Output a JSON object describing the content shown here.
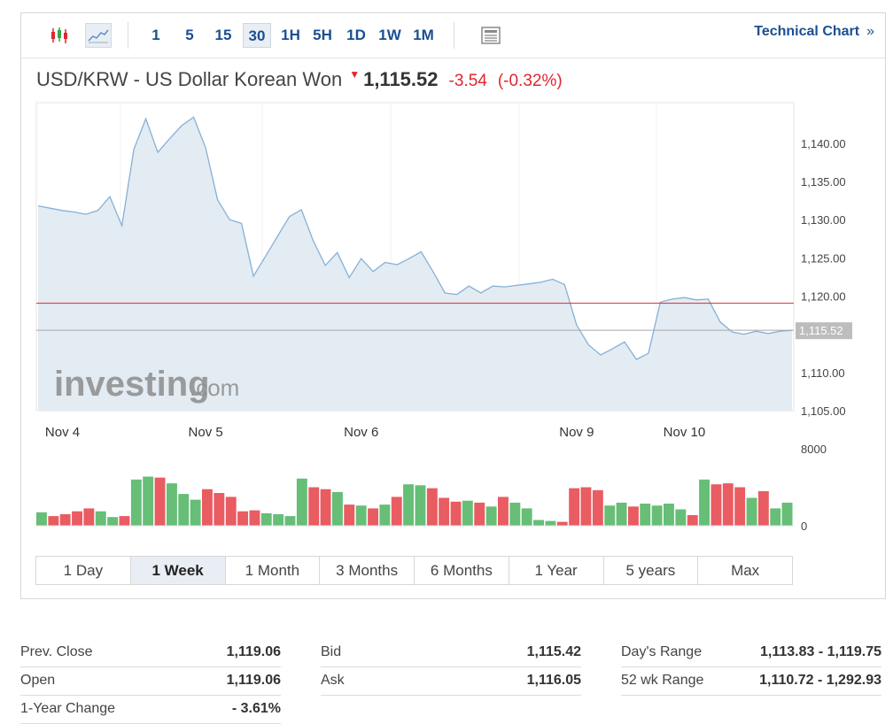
{
  "toolbar": {
    "timeframes": [
      "1",
      "5",
      "15",
      "30",
      "1H",
      "5H",
      "1D",
      "1W",
      "1M"
    ],
    "active_timeframe": "30",
    "technical_chart": "Technical Chart",
    "technical_chevron": "»"
  },
  "instrument": {
    "name": "USD/KRW - US Dollar Korean Won",
    "price": "1,115.52",
    "change": "-3.54",
    "change_pct": "(-0.32%)",
    "down_color": "#e0262d"
  },
  "chart_data": {
    "type": "area",
    "price_axis": {
      "ticks": [
        1140,
        1135,
        1130,
        1125,
        1120,
        1110,
        1105
      ],
      "tick_labels": [
        "1,140.00",
        "1,135.00",
        "1,130.00",
        "1,125.00",
        "1,120.00",
        "1,110.00",
        "1,105.00"
      ],
      "ylim": [
        1105,
        1145.3
      ],
      "current_value": 1115.52,
      "current_label": "1,115.52",
      "prev_close_line": 1119.06
    },
    "x_labels": [
      {
        "label": "Nov 4",
        "idx": 1
      },
      {
        "label": "Nov 5",
        "idx": 14
      },
      {
        "label": "Nov 6",
        "idx": 27
      },
      {
        "label": "Nov 9",
        "idx": 45
      },
      {
        "label": "Nov 10",
        "idx": 54
      }
    ],
    "price_series": [
      1131.8,
      1131.5,
      1131.2,
      1131,
      1130.7,
      1131.2,
      1133,
      1129.2,
      1139.2,
      1143.2,
      1138.8,
      1140.6,
      1142.3,
      1143.4,
      1139.4,
      1132.6,
      1130,
      1129.5,
      1122.6,
      1125.2,
      1127.8,
      1130.4,
      1131.3,
      1127.2,
      1124,
      1125.7,
      1122.4,
      1124.9,
      1123.2,
      1124.4,
      1124.1,
      1124.9,
      1125.8,
      1123.2,
      1120.4,
      1120.2,
      1121.3,
      1120.4,
      1121.3,
      1121.2,
      1121.4,
      1121.6,
      1121.8,
      1122.2,
      1121.5,
      1116.2,
      1113.6,
      1112.3,
      1113.1,
      1114,
      1111.7,
      1112.5,
      1119.2,
      1119.6,
      1119.8,
      1119.5,
      1119.6,
      1116.6,
      1115.3,
      1115,
      1115.4,
      1115.1,
      1115.4,
      1115.52
    ],
    "volume_axis": {
      "ticks": [
        8000,
        0
      ],
      "tick_labels": [
        "8000",
        "0"
      ],
      "ylim": [
        0,
        8000
      ]
    },
    "volume_series": [
      1400,
      1000,
      1200,
      1500,
      1800,
      1500,
      900,
      1000,
      4800,
      5100,
      5000,
      4400,
      3300,
      2700,
      3800,
      3400,
      3000,
      1500,
      1600,
      1300,
      1200,
      1000,
      4900,
      4000,
      3800,
      3500,
      2200,
      2100,
      1800,
      2200,
      3000,
      4300,
      4200,
      3900,
      2900,
      2500,
      2600,
      2400,
      2000,
      3000,
      2400,
      1800,
      600,
      500,
      400,
      3900,
      4000,
      3700,
      2100,
      2400,
      2000,
      2300,
      2100,
      2300,
      1700,
      1100,
      4800,
      4300,
      4400,
      4000,
      2900,
      3600,
      1800,
      2400
    ],
    "volume_colors": [
      "#e0262d",
      "#33a84a"
    ],
    "line_color": "#86b0d8",
    "fill_color": "#e3ecf3",
    "watermark": "investing.com"
  },
  "ranges": {
    "items": [
      "1 Day",
      "1 Week",
      "1 Month",
      "3 Months",
      "6 Months",
      "1 Year",
      "5 years",
      "Max"
    ],
    "active": "1 Week"
  },
  "stats": {
    "prev_close": {
      "label": "Prev. Close",
      "value": "1,119.06"
    },
    "open": {
      "label": "Open",
      "value": "1,119.06"
    },
    "year_change": {
      "label": "1-Year Change",
      "value": "- 3.61%"
    },
    "bid": {
      "label": "Bid",
      "value": "1,115.42"
    },
    "ask": {
      "label": "Ask",
      "value": "1,116.05"
    },
    "days_range": {
      "label": "Day's Range",
      "value": "1,113.83 - 1,119.75"
    },
    "wk52_range": {
      "label": "52 wk Range",
      "value": "1,110.72 - 1,292.93"
    }
  }
}
